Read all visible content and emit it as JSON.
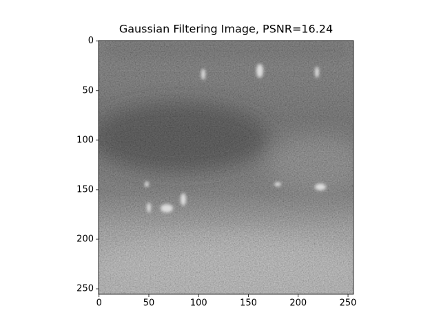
{
  "chart_data": {
    "type": "image",
    "title": "Gaussian Filtering Image, PSNR=16.24",
    "xlim": [
      -0.5,
      255.5
    ],
    "ylim": [
      255.5,
      -0.5
    ],
    "xticks": [
      0,
      50,
      100,
      150,
      200,
      250
    ],
    "yticks": [
      0,
      50,
      100,
      150,
      200,
      250
    ]
  }
}
